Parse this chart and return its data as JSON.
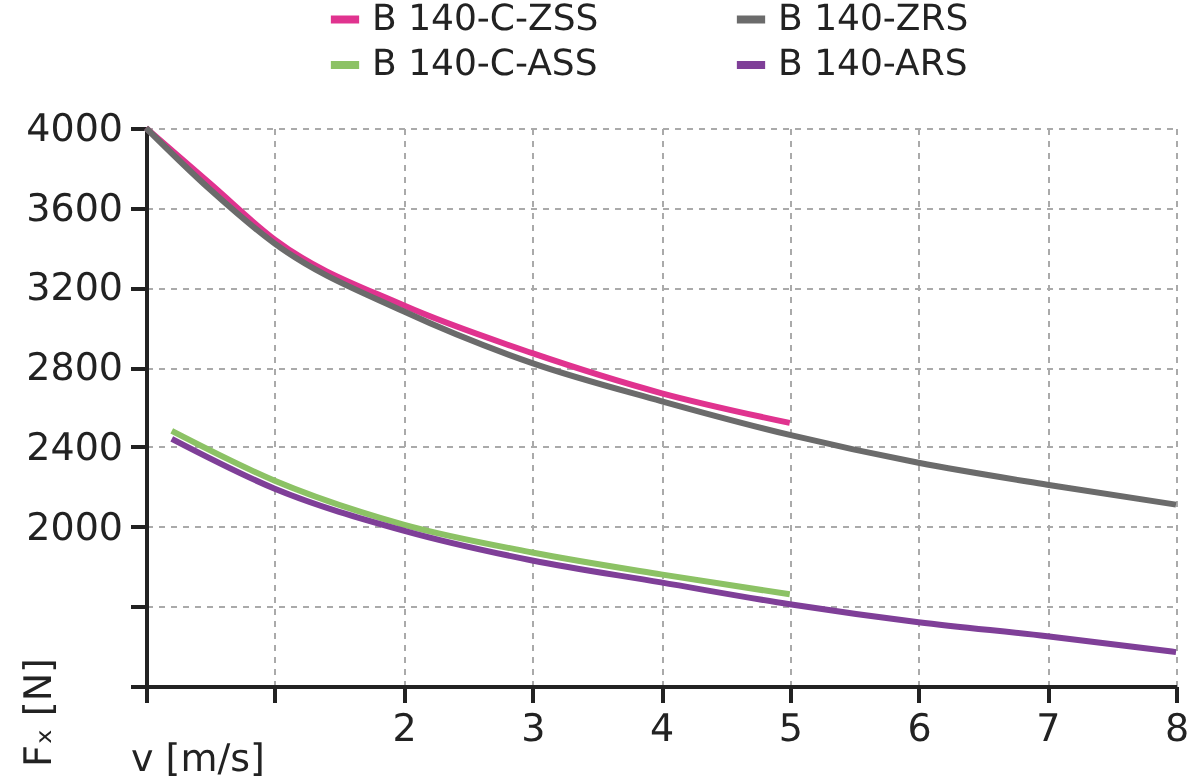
{
  "chart_data": {
    "type": "line",
    "xlabel": "v [m/s]",
    "ylabel": "Fₓ [N]",
    "xlim": [
      0,
      8
    ],
    "xticks": [
      {
        "value": 0,
        "label": null
      },
      {
        "value": 1,
        "label": null
      },
      2,
      3,
      4,
      5,
      6,
      7,
      8
    ],
    "ylim": [
      1200,
      4000
    ],
    "yticks": [
      {
        "value": 1200,
        "label": null
      },
      {
        "value": 1600,
        "label": null
      },
      2000,
      2400,
      2800,
      3200,
      3600,
      4000
    ],
    "grid": true,
    "legend": "top",
    "line_style": "solid",
    "marker": "none",
    "series": [
      {
        "name": "B 140-C-ZSS",
        "color": "#e0338f",
        "x": [
          0,
          0.5,
          1,
          2,
          3,
          4,
          5
        ],
        "values": [
          4000,
          3720,
          3440,
          3110,
          2870,
          2670,
          2520
        ]
      },
      {
        "name": "B 140-ZRS",
        "color": "#6b6b6b",
        "x": [
          0,
          0.5,
          1,
          2,
          3,
          4,
          5,
          6,
          7,
          8
        ],
        "values": [
          4000,
          3690,
          3420,
          3080,
          2820,
          2630,
          2460,
          2320,
          2210,
          2110
        ]
      },
      {
        "name": "B 140-C-ASS",
        "color": "#8cc265",
        "x": [
          0.2,
          1,
          2,
          3,
          4,
          5
        ],
        "values": [
          2480,
          2230,
          2010,
          1870,
          1760,
          1660
        ]
      },
      {
        "name": "B 140-ARS",
        "color": "#7f3f98",
        "x": [
          0.2,
          1,
          2,
          3,
          4,
          5,
          6,
          7,
          8
        ],
        "values": [
          2440,
          2190,
          1980,
          1830,
          1720,
          1610,
          1520,
          1450,
          1370
        ]
      }
    ]
  }
}
